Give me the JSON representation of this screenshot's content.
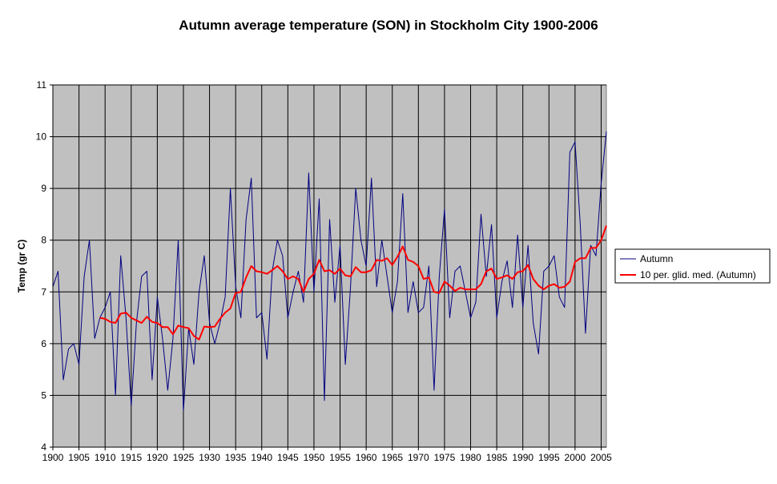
{
  "chart_data": {
    "type": "line",
    "title": "Autumn average temperature (SON) in Stockholm City 1900-2006",
    "ylabel": "Temp (gr C)",
    "xlabel": "",
    "xlim": [
      1900,
      2006
    ],
    "ylim": [
      4,
      11
    ],
    "y_ticks": [
      4,
      5,
      6,
      7,
      8,
      9,
      10,
      11
    ],
    "x_ticks": [
      1900,
      1905,
      1910,
      1915,
      1920,
      1925,
      1930,
      1935,
      1940,
      1945,
      1950,
      1955,
      1960,
      1965,
      1970,
      1975,
      1980,
      1985,
      1990,
      1995,
      2000,
      2005
    ],
    "grid": true,
    "legend_position": "right",
    "background_color": "#c0c0c0",
    "series": [
      {
        "name": "Autumn",
        "color": "#000080",
        "x": [
          1900,
          1901,
          1902,
          1903,
          1904,
          1905,
          1906,
          1907,
          1908,
          1909,
          1910,
          1911,
          1912,
          1913,
          1914,
          1915,
          1916,
          1917,
          1918,
          1919,
          1920,
          1921,
          1922,
          1923,
          1924,
          1925,
          1926,
          1927,
          1928,
          1929,
          1930,
          1931,
          1932,
          1933,
          1934,
          1935,
          1936,
          1937,
          1938,
          1939,
          1940,
          1941,
          1942,
          1943,
          1944,
          1945,
          1946,
          1947,
          1948,
          1949,
          1950,
          1951,
          1952,
          1953,
          1954,
          1955,
          1956,
          1957,
          1958,
          1959,
          1960,
          1961,
          1962,
          1963,
          1964,
          1965,
          1966,
          1967,
          1968,
          1969,
          1970,
          1971,
          1972,
          1973,
          1974,
          1975,
          1976,
          1977,
          1978,
          1979,
          1980,
          1981,
          1982,
          1983,
          1984,
          1985,
          1986,
          1987,
          1988,
          1989,
          1990,
          1991,
          1992,
          1993,
          1994,
          1995,
          1996,
          1997,
          1998,
          1999,
          2000,
          2001,
          2002,
          2003,
          2004,
          2005,
          2006
        ],
        "values": [
          7.1,
          7.4,
          5.3,
          5.9,
          6.0,
          5.6,
          7.3,
          8.0,
          6.1,
          6.5,
          6.7,
          7.0,
          5.0,
          7.7,
          6.5,
          4.8,
          6.4,
          7.3,
          7.4,
          5.3,
          6.9,
          6.1,
          5.1,
          6.1,
          8.0,
          4.7,
          6.3,
          5.6,
          7.0,
          7.7,
          6.4,
          6.0,
          6.4,
          6.9,
          9.0,
          7.1,
          6.5,
          8.4,
          9.2,
          6.5,
          6.6,
          5.7,
          7.4,
          8.0,
          7.7,
          6.5,
          7.0,
          7.4,
          6.8,
          9.3,
          7.0,
          8.8,
          4.9,
          8.4,
          6.8,
          7.9,
          5.6,
          7.1,
          9.0,
          8.0,
          7.5,
          9.2,
          7.1,
          8.0,
          7.3,
          6.6,
          7.2,
          8.9,
          6.6,
          7.2,
          6.6,
          6.7,
          7.5,
          5.1,
          7.3,
          8.6,
          6.5,
          7.4,
          7.5,
          7.0,
          6.5,
          6.8,
          8.5,
          7.3,
          8.3,
          6.5,
          7.2,
          7.6,
          6.7,
          8.1,
          6.7,
          7.9,
          6.4,
          5.8,
          7.4,
          7.5,
          7.7,
          6.9,
          6.7,
          9.7,
          9.9,
          8.3,
          6.2,
          7.9,
          7.7,
          9.1,
          10.1
        ]
      },
      {
        "name": "10 per. glid. med. (Autumn)",
        "color": "#ff0000",
        "x": [
          1909,
          1910,
          1911,
          1912,
          1913,
          1914,
          1915,
          1916,
          1917,
          1918,
          1919,
          1920,
          1921,
          1922,
          1923,
          1924,
          1925,
          1926,
          1927,
          1928,
          1929,
          1930,
          1931,
          1932,
          1933,
          1934,
          1935,
          1936,
          1937,
          1938,
          1939,
          1940,
          1941,
          1942,
          1943,
          1944,
          1945,
          1946,
          1947,
          1948,
          1949,
          1950,
          1951,
          1952,
          1953,
          1954,
          1955,
          1956,
          1957,
          1958,
          1959,
          1960,
          1961,
          1962,
          1963,
          1964,
          1965,
          1966,
          1967,
          1968,
          1969,
          1970,
          1971,
          1972,
          1973,
          1974,
          1975,
          1976,
          1977,
          1978,
          1979,
          1980,
          1981,
          1982,
          1983,
          1984,
          1985,
          1986,
          1987,
          1988,
          1989,
          1990,
          1991,
          1992,
          1993,
          1994,
          1995,
          1996,
          1997,
          1998,
          1999,
          2000,
          2001,
          2002,
          2003,
          2004,
          2005,
          2006
        ],
        "values": [
          6.5,
          6.48,
          6.42,
          6.4,
          6.58,
          6.6,
          6.5,
          6.45,
          6.4,
          6.52,
          6.42,
          6.4,
          6.32,
          6.32,
          6.18,
          6.35,
          6.32,
          6.3,
          6.15,
          6.08,
          6.33,
          6.32,
          6.33,
          6.48,
          6.6,
          6.68,
          6.98,
          7.0,
          7.28,
          7.5,
          7.4,
          7.38,
          7.35,
          7.42,
          7.5,
          7.4,
          7.25,
          7.3,
          7.25,
          7.0,
          7.25,
          7.35,
          7.62,
          7.4,
          7.42,
          7.35,
          7.45,
          7.32,
          7.3,
          7.48,
          7.38,
          7.38,
          7.42,
          7.62,
          7.6,
          7.65,
          7.52,
          7.68,
          7.88,
          7.62,
          7.58,
          7.5,
          7.25,
          7.28,
          7.0,
          6.98,
          7.2,
          7.12,
          7.02,
          7.08,
          7.05,
          7.05,
          7.05,
          7.15,
          7.4,
          7.45,
          7.25,
          7.28,
          7.32,
          7.25,
          7.38,
          7.4,
          7.52,
          7.25,
          7.12,
          7.05,
          7.12,
          7.15,
          7.08,
          7.1,
          7.2,
          7.58,
          7.65,
          7.65,
          7.85,
          7.85,
          8.0,
          8.28
        ]
      }
    ]
  }
}
